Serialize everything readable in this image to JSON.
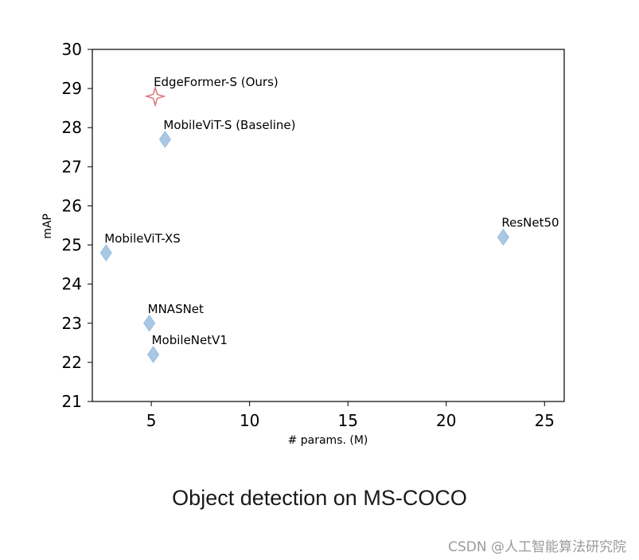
{
  "chart_data": {
    "type": "scatter",
    "title": "",
    "xlabel": "# params. (M)",
    "ylabel": "mAP",
    "xlim": [
      2.0,
      26.0
    ],
    "ylim": [
      21,
      30
    ],
    "xticks": [
      5,
      10,
      15,
      20,
      25
    ],
    "yticks": [
      21,
      22,
      23,
      24,
      25,
      26,
      27,
      28,
      29,
      30
    ],
    "grid": false,
    "points": [
      {
        "label": "EdgeFormer-S (Ours)",
        "x": 5.2,
        "y": 28.8,
        "marker": "star",
        "color": "#d9727a"
      },
      {
        "label": "MobileViT-S (Baseline)",
        "x": 5.7,
        "y": 27.7,
        "marker": "diamond",
        "color": "#a9c8e4"
      },
      {
        "label": "ResNet50",
        "x": 22.9,
        "y": 25.2,
        "marker": "diamond",
        "color": "#a9c8e4"
      },
      {
        "label": "MobileViT-XS",
        "x": 2.7,
        "y": 24.8,
        "marker": "diamond",
        "color": "#a9c8e4"
      },
      {
        "label": "MNASNet",
        "x": 4.9,
        "y": 23.0,
        "marker": "diamond",
        "color": "#a9c8e4"
      },
      {
        "label": "MobileNetV1",
        "x": 5.1,
        "y": 22.2,
        "marker": "diamond",
        "color": "#a9c8e4"
      }
    ]
  },
  "caption": "Object detection on MS-COCO",
  "watermark": "CSDN @人工智能算法研究院"
}
